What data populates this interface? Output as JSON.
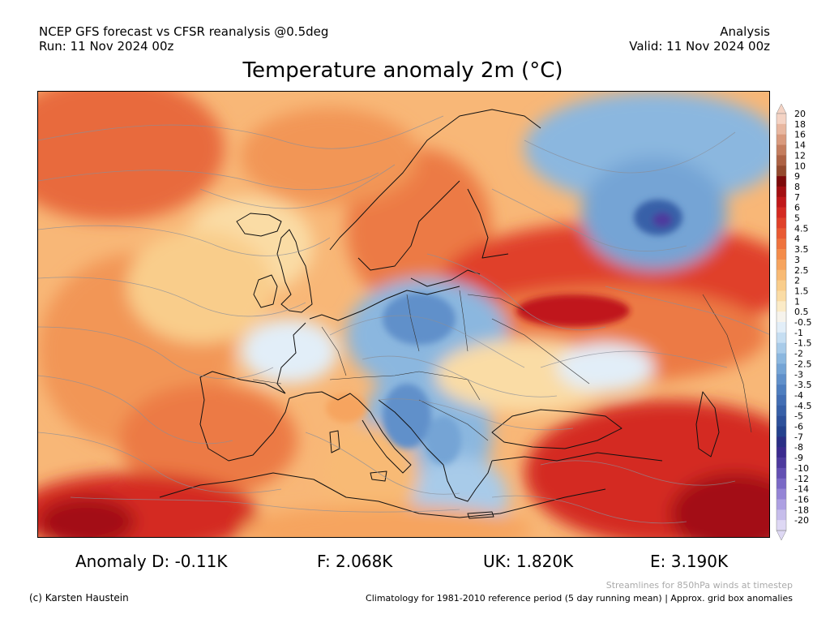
{
  "header": {
    "line1": "NCEP GFS forecast vs CFSR reanalysis @0.5deg",
    "line2": "Run: 11 Nov 2024 00z",
    "right1": "Analysis",
    "right2": "Valid: 11 Nov 2024 00z"
  },
  "title": "Temperature anomaly 2m (°C)",
  "legend": {
    "labels": [
      "20",
      "18",
      "16",
      "14",
      "12",
      "10",
      "9",
      "8",
      "7",
      "6",
      "5",
      "4.5",
      "4",
      "3.5",
      "3",
      "2.5",
      "2",
      "1.5",
      "1",
      "0.5",
      "-0.5",
      "-1",
      "-1.5",
      "-2",
      "-2.5",
      "-3",
      "-3.5",
      "-4",
      "-4.5",
      "-5",
      "-6",
      "-7",
      "-8",
      "-9",
      "-10",
      "-12",
      "-14",
      "-16",
      "-18",
      "-20"
    ],
    "colors": [
      "#f4d3c4",
      "#e8b7a0",
      "#d99a7d",
      "#c47d5e",
      "#ad6244",
      "#944a2e",
      "#7d0a0a",
      "#a30f12",
      "#c0181a",
      "#d42a22",
      "#e0412a",
      "#e95a33",
      "#ef733e",
      "#f48c4b",
      "#f6a45e",
      "#f8ba74",
      "#f9cd8b",
      "#fadca5",
      "#fbebc7",
      "#f6f3ec",
      "#e2eef8",
      "#c5def2",
      "#a8cbe9",
      "#8bb7df",
      "#74a4d5",
      "#6090ca",
      "#4e7ebf",
      "#426eb4",
      "#3760a8",
      "#2d519b",
      "#24428e",
      "#2a2f86",
      "#3b2b8f",
      "#4d3a9e",
      "#6350b3",
      "#7a69c6",
      "#9484d6",
      "#ada0e2",
      "#c6bdeb",
      "#ded8f4"
    ]
  },
  "stats": {
    "anomaly": "Anomaly D: -0.11K",
    "f": "F: 2.068K",
    "uk": "UK: 1.820K",
    "e": "E: 3.190K"
  },
  "footer": {
    "credit": "(c) Karsten Haustein",
    "streamlines": "Streamlines for 850hPa winds at timestep",
    "climatology": "Climatology for 1981-2010 reference period (5 day running mean) | Approx. grid box anomalies"
  }
}
